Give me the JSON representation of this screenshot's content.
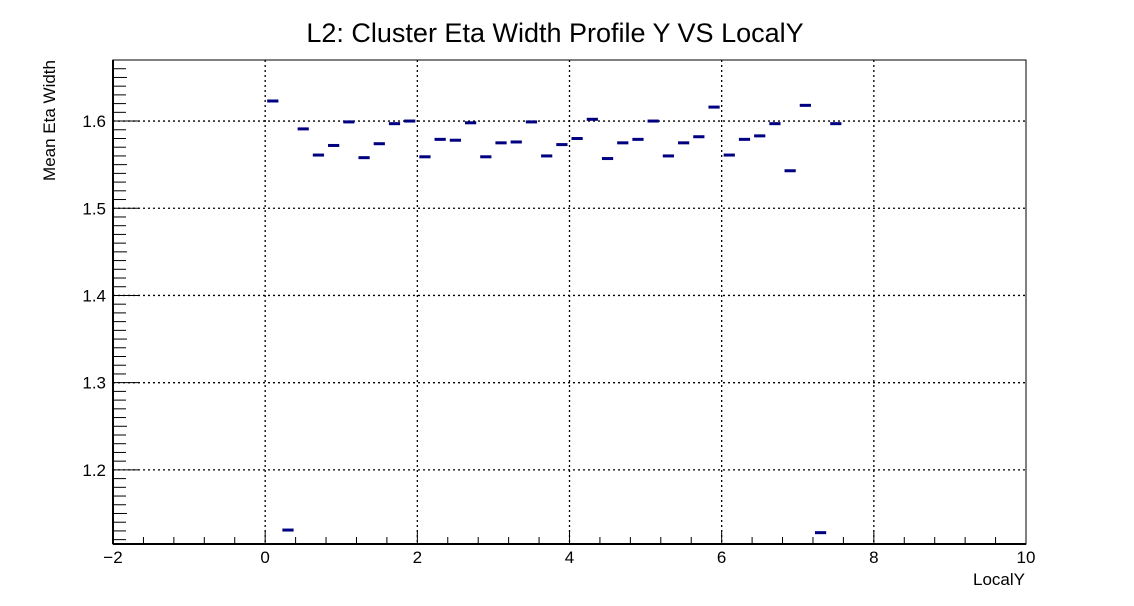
{
  "chart_data": {
    "type": "scatter",
    "style": "profile-markers",
    "title": "L2: Cluster Eta Width Profile Y VS LocalY",
    "xlabel": "LocalY",
    "ylabel": "Mean Eta Width",
    "xlim": [
      -2,
      10
    ],
    "ylim": [
      1.115,
      1.67
    ],
    "x_ticks": [
      -2,
      0,
      2,
      4,
      6,
      8,
      10
    ],
    "x_tick_labels": [
      "−2",
      "0",
      "2",
      "4",
      "6",
      "8",
      "10"
    ],
    "y_ticks": [
      1.2,
      1.3,
      1.4,
      1.5,
      1.6
    ],
    "y_tick_labels": [
      "1.2",
      "1.3",
      "1.4",
      "1.5",
      "1.6"
    ],
    "grid": true,
    "legend": "none",
    "bin_width": 0.2,
    "marker_color": "#000080",
    "series": [
      {
        "x": [
          0.1,
          0.3,
          0.5,
          0.7,
          0.9,
          1.1,
          1.3,
          1.5,
          1.7,
          1.9,
          2.1,
          2.3,
          2.5,
          2.7,
          2.9,
          3.1,
          3.3,
          3.5,
          3.7,
          3.9,
          4.1,
          4.3,
          4.5,
          4.7,
          4.9,
          5.1,
          5.3,
          5.5,
          5.7,
          5.9,
          6.1,
          6.3,
          6.5,
          6.7,
          6.9,
          7.1,
          7.3,
          7.5
        ],
        "values": [
          1.623,
          1.131,
          1.591,
          1.561,
          1.572,
          1.599,
          1.558,
          1.574,
          1.597,
          1.6,
          1.559,
          1.579,
          1.578,
          1.598,
          1.559,
          1.575,
          1.576,
          1.599,
          1.56,
          1.573,
          1.58,
          1.602,
          1.557,
          1.575,
          1.579,
          1.6,
          1.56,
          1.575,
          1.582,
          1.616,
          1.561,
          1.579,
          1.583,
          1.597,
          1.543,
          1.618,
          1.128,
          1.597
        ]
      }
    ]
  },
  "colors": {
    "frame": "#000000",
    "grid": "#000000",
    "marker": "#000080"
  }
}
